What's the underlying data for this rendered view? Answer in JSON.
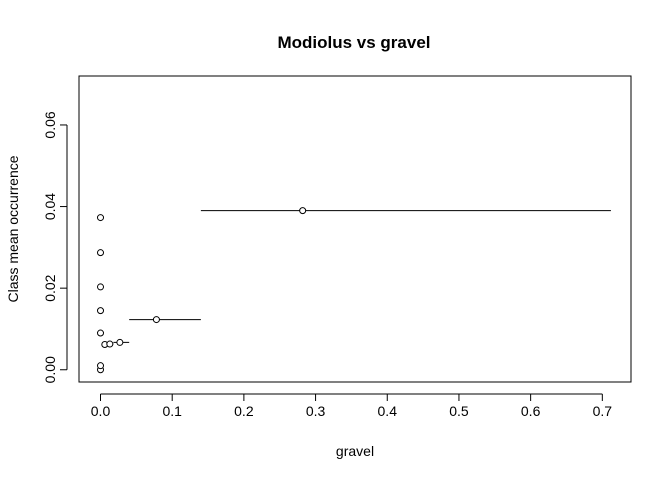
{
  "chart_data": {
    "type": "scatter",
    "title": "Modiolus vs gravel",
    "xlabel": "gravel",
    "ylabel": "Class mean occurrence",
    "xlim": [
      -0.03,
      0.74
    ],
    "ylim": [
      -0.003,
      0.072
    ],
    "x_ticks": [
      0.0,
      0.1,
      0.2,
      0.3,
      0.4,
      0.5,
      0.6,
      0.7
    ],
    "x_tick_labels": [
      "0.0",
      "0.1",
      "0.2",
      "0.3",
      "0.4",
      "0.5",
      "0.6",
      "0.7"
    ],
    "y_ticks": [
      0.0,
      0.02,
      0.04,
      0.06
    ],
    "y_tick_labels": [
      "0.00",
      "0.02",
      "0.04",
      "0.06"
    ],
    "grid": false,
    "legend": "none",
    "points": [
      {
        "x": 0.0,
        "y": 0.0
      },
      {
        "x": 0.0,
        "y": 0.001
      },
      {
        "x": 0.0,
        "y": 0.009
      },
      {
        "x": 0.0,
        "y": 0.0145
      },
      {
        "x": 0.0,
        "y": 0.0203
      },
      {
        "x": 0.0,
        "y": 0.0287
      },
      {
        "x": 0.0,
        "y": 0.0373
      },
      {
        "x": 0.006,
        "y": 0.0062
      },
      {
        "x": 0.013,
        "y": 0.0063
      },
      {
        "x": 0.027,
        "y": 0.0067
      },
      {
        "x": 0.078,
        "y": 0.0123
      },
      {
        "x": 0.282,
        "y": 0.039
      }
    ],
    "ranges": [
      {
        "x_min": 0.003,
        "x_max": 0.009,
        "y": 0.0062
      },
      {
        "x_min": 0.009,
        "x_max": 0.018,
        "y": 0.0063
      },
      {
        "x_min": 0.018,
        "x_max": 0.04,
        "y": 0.0067
      },
      {
        "x_min": 0.04,
        "x_max": 0.14,
        "y": 0.0123
      },
      {
        "x_min": 0.14,
        "x_max": 0.712,
        "y": 0.039
      }
    ]
  }
}
